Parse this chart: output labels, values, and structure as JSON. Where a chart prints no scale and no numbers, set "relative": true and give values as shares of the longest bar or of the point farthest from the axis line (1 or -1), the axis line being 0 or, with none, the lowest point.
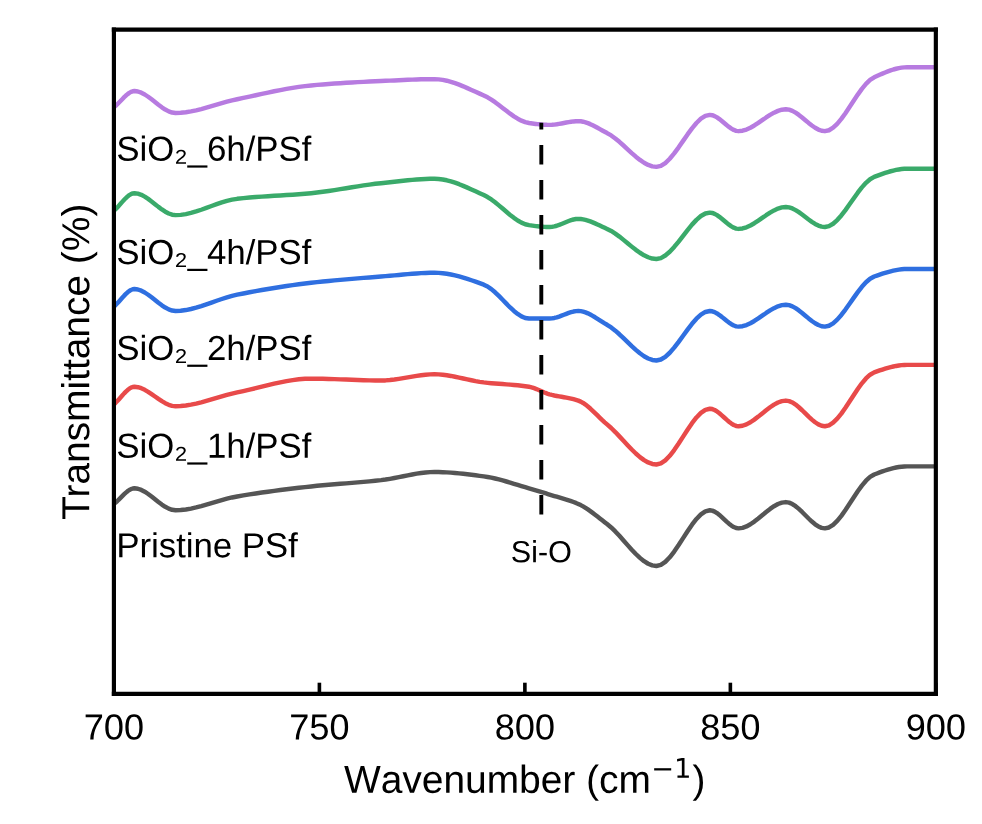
{
  "chart_data": {
    "type": "line",
    "relative": true,
    "xlabel": "Wavenumber (cm$^{−1}$)",
    "ylabel": "Transmittance (%)",
    "x": [
      700,
      705,
      715,
      730,
      748,
      765,
      778,
      790,
      801,
      806,
      813,
      820,
      832,
      845,
      852,
      863.5,
      873,
      885,
      893,
      900
    ],
    "xlim": [
      700,
      900
    ],
    "xticks": [
      700,
      750,
      800,
      850,
      900
    ],
    "grid": false,
    "legend": false,
    "tick_labels": "x",
    "series": [
      {
        "name": "SiO₂_6h/PSf",
        "color": "#b77be0",
        "values": [
          0.936,
          0.962,
          0.927,
          0.949,
          0.971,
          0.978,
          0.981,
          0.955,
          0.911,
          0.908,
          0.914,
          0.895,
          0.841,
          0.924,
          0.898,
          0.933,
          0.898,
          0.984,
          1.0,
          1.0
        ]
      },
      {
        "name": "SiO₂_4h/PSf",
        "color": "#3aaa6a",
        "values": [
          0.771,
          0.799,
          0.764,
          0.79,
          0.799,
          0.815,
          0.822,
          0.796,
          0.748,
          0.745,
          0.758,
          0.742,
          0.694,
          0.768,
          0.742,
          0.777,
          0.745,
          0.825,
          0.838,
          0.838
        ]
      },
      {
        "name": "SiO₂_2h/PSf",
        "color": "#2f6fe0",
        "values": [
          0.618,
          0.646,
          0.611,
          0.637,
          0.656,
          0.666,
          0.672,
          0.653,
          0.599,
          0.599,
          0.611,
          0.589,
          0.532,
          0.611,
          0.586,
          0.621,
          0.586,
          0.666,
          0.678,
          0.678
        ]
      },
      {
        "name": "SiO₂_1h/PSf",
        "color": "#e84a4a",
        "values": [
          0.462,
          0.49,
          0.459,
          0.481,
          0.503,
          0.5,
          0.51,
          0.497,
          0.49,
          0.478,
          0.468,
          0.43,
          0.366,
          0.455,
          0.427,
          0.468,
          0.427,
          0.513,
          0.525,
          0.525
        ]
      },
      {
        "name": "Pristine PSf",
        "color": "#555555",
        "values": [
          0.303,
          0.328,
          0.293,
          0.315,
          0.331,
          0.341,
          0.354,
          0.347,
          0.328,
          0.318,
          0.303,
          0.271,
          0.204,
          0.293,
          0.264,
          0.306,
          0.264,
          0.35,
          0.363,
          0.363
        ]
      }
    ],
    "ref_lines": [
      {
        "axis": "x",
        "value": 804,
        "label": "Si-O",
        "color": "#000000",
        "line_style": "dashed"
      }
    ]
  }
}
